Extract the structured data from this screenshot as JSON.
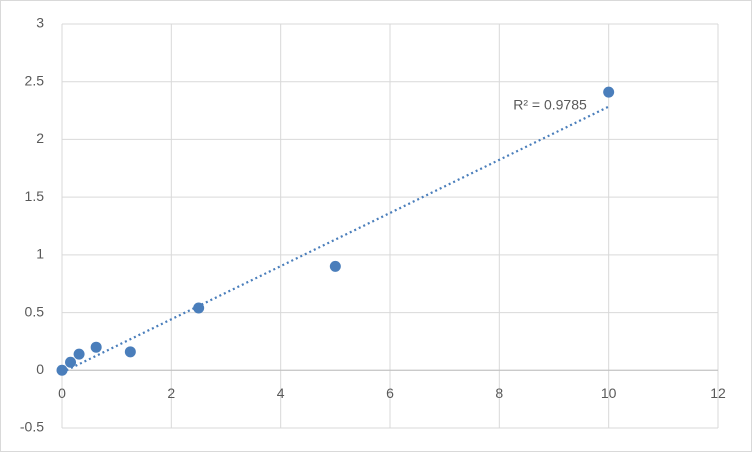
{
  "chart_data": {
    "type": "scatter",
    "annotation": "R² = 0.9785",
    "series": [
      {
        "color": "#4a7ebb",
        "x": [
          0,
          0.156,
          0.3125,
          0.625,
          1.25,
          2.5,
          5,
          10
        ],
        "values": [
          0,
          0.07,
          0.14,
          0.2,
          0.16,
          0.54,
          0.9,
          2.41
        ]
      }
    ],
    "trendline": "linear",
    "xlim": [
      0,
      12
    ],
    "xticks": [
      0,
      2,
      4,
      6,
      8,
      10,
      12
    ],
    "ylim": [
      -0.5,
      3
    ],
    "yticks": [
      -0.5,
      0,
      0.5,
      1,
      1.5,
      2,
      2.5,
      3
    ],
    "grid": true
  }
}
